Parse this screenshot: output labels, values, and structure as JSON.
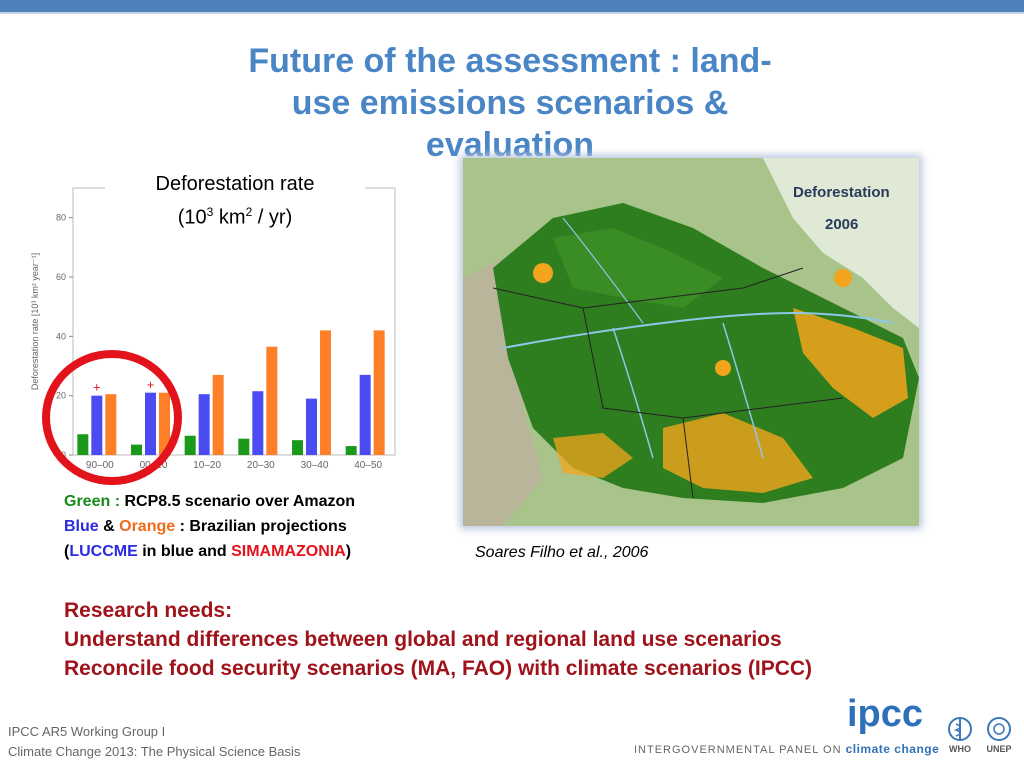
{
  "title": {
    "line1": "Future of the assessment : land-",
    "line2": "use emissions scenarios &",
    "line3": "evaluation"
  },
  "chart_caption": {
    "line1": "Deforestation rate",
    "line2_prefix": "(10",
    "line2_sup1": "3",
    "line2_mid": " km",
    "line2_sup2": "2",
    "line2_suffix": " / yr)"
  },
  "chart_data": {
    "type": "bar",
    "categories": [
      "90–00",
      "00–10",
      "10–20",
      "20–30",
      "30–40",
      "40–50"
    ],
    "series": [
      {
        "name": "Green",
        "color": "#1a9a1a",
        "values": [
          7,
          3.5,
          6.5,
          5.5,
          5,
          3
        ]
      },
      {
        "name": "Blue",
        "color": "#4a4cf2",
        "values": [
          20,
          21,
          20.5,
          21.5,
          19,
          27
        ]
      },
      {
        "name": "Orange",
        "color": "#ff7f28",
        "values": [
          20.5,
          21,
          27,
          36.5,
          42,
          42
        ]
      }
    ],
    "markers": [
      {
        "category": "90–00",
        "value": 22
      },
      {
        "category": "00–10",
        "value": 23
      }
    ],
    "ylabel": "Deforestation rate  [10³ km² year⁻¹]",
    "yticks": [
      0,
      20,
      40,
      60,
      80
    ],
    "ylim": [
      0,
      90
    ]
  },
  "legend": {
    "green_word": "Green :",
    "line1_rest": " RCP8.5 scenario over Amazon",
    "blue_word": "Blue",
    "amp": " & ",
    "orange_word": "Orange",
    "line2_rest": " : Brazilian projections",
    "open_paren": "(",
    "luccme": "LUCCME",
    "mid": " in blue and ",
    "simamazonia": "SIMAMAZONIA",
    "close_paren": ")"
  },
  "map": {
    "label1": "Deforestation",
    "label2": "2006",
    "caption": "Soares Filho et al., 2006"
  },
  "research": {
    "line1": "Research needs:",
    "line2": "Understand differences between global and regional land use scenarios",
    "line3": "Reconcile food security scenarios (MA, FAO) with climate scenarios (IPCC)"
  },
  "footer": {
    "line1": "IPCC AR5 Working Group I",
    "line2": "Climate Change 2013:  The Physical Science Basis",
    "ipcc_word": "ipcc",
    "tagline_prefix": "INTERGOVERNMENTAL PANEL ON ",
    "tagline_cc": "climate change",
    "who": "WHO",
    "unep": "UNEP"
  },
  "colors": {
    "title": "#4a86c5",
    "research": "#a0131b",
    "accent_bar": "#4f81bd",
    "circle": "#e3131b"
  }
}
